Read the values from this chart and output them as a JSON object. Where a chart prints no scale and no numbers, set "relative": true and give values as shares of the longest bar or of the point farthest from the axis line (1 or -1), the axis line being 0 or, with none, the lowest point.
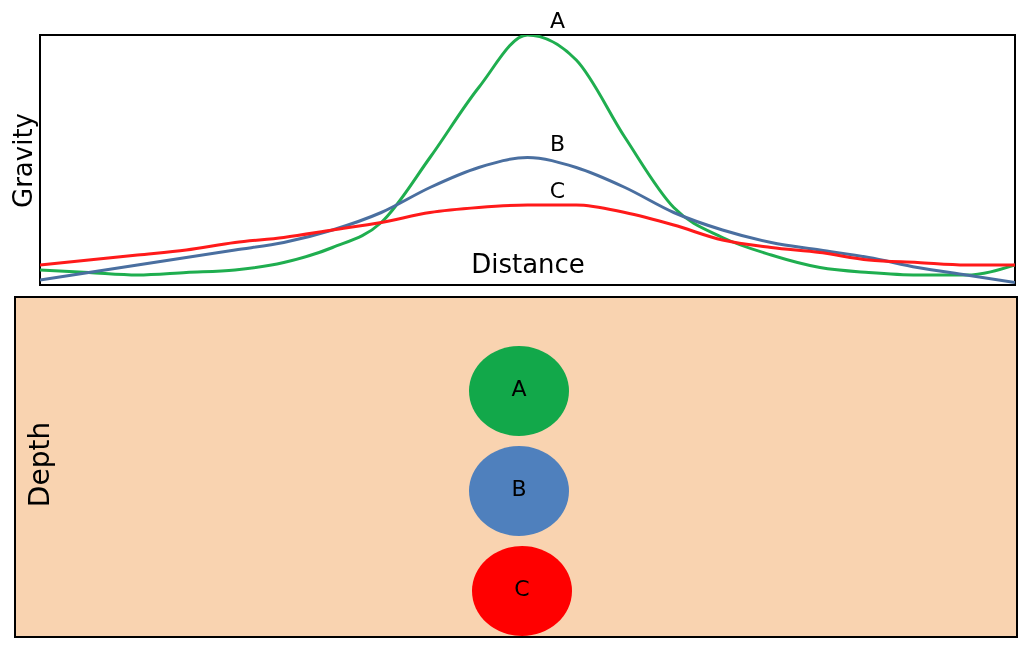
{
  "chart_data": [
    {
      "type": "line",
      "relative": true,
      "xlabel": "Distance",
      "ylabel": "Gravity",
      "legend": false,
      "grid": false,
      "categories": [
        null,
        null,
        null,
        null,
        null,
        null,
        null,
        null,
        null,
        null,
        null,
        null,
        null,
        null,
        null,
        null,
        null,
        null,
        null,
        null,
        null
      ],
      "series": [
        {
          "name": "A",
          "color": "#1fae4f",
          "values": [
            0.06,
            0.05,
            0.04,
            0.05,
            0.06,
            0.09,
            0.15,
            0.25,
            0.51,
            0.79,
            1.0,
            0.9,
            0.59,
            0.31,
            0.19,
            0.12,
            0.07,
            0.05,
            0.04,
            0.04,
            0.08
          ]
        },
        {
          "name": "B",
          "color": "#4a6fa0",
          "values": [
            0.02,
            0.05,
            0.08,
            0.11,
            0.14,
            0.17,
            0.22,
            0.29,
            0.39,
            0.47,
            0.51,
            0.47,
            0.39,
            0.29,
            0.22,
            0.17,
            0.14,
            0.11,
            0.07,
            0.04,
            0.01
          ]
        },
        {
          "name": "C",
          "color": "#ff1a1a",
          "values": [
            0.08,
            0.1,
            0.12,
            0.14,
            0.17,
            0.19,
            0.22,
            0.25,
            0.29,
            0.31,
            0.32,
            0.32,
            0.29,
            0.24,
            0.18,
            0.15,
            0.13,
            0.1,
            0.09,
            0.08,
            0.08
          ]
        }
      ]
    },
    {
      "type": "other",
      "ylabel": "Depth",
      "annotations": [
        "A",
        "B",
        "C"
      ]
    }
  ]
}
